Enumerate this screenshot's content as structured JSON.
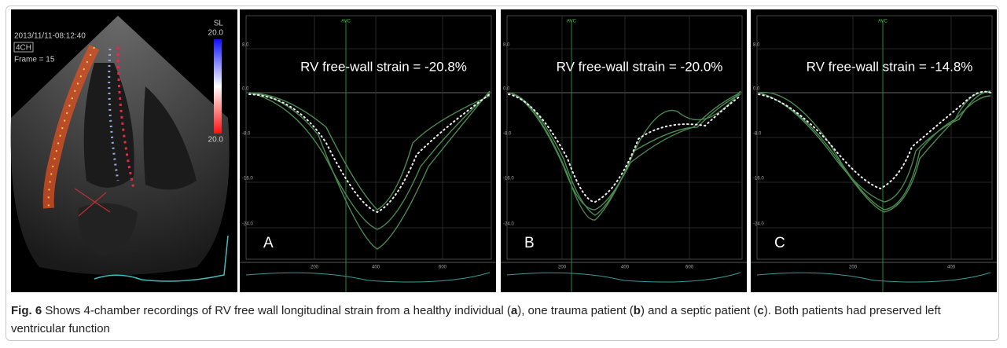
{
  "figure": {
    "echo": {
      "timestamp": "2013/11/11-08:12:40",
      "view": "4CH",
      "frame": "Frame = 15",
      "scale_label": "SL",
      "scale_max": "20.0",
      "scale_min": "20.0"
    },
    "panels": [
      {
        "letter": "A",
        "strain": "RV free-wall strain = -20.8%",
        "marker": "AVC",
        "yticks": [
          "8.0",
          "0.0",
          "-8.0",
          "-16.0",
          "-24.0"
        ],
        "xticks": [
          "200",
          "400",
          "600"
        ]
      },
      {
        "letter": "B",
        "strain": "RV free-wall strain = -20.0%",
        "marker": "AVC",
        "yticks": [
          "8.0",
          "0.0",
          "-8.0",
          "-16.0",
          "-24.0"
        ],
        "xticks": [
          "200",
          "400",
          "600"
        ]
      },
      {
        "letter": "C",
        "strain": "RV free-wall strain = -14.8%",
        "marker": "AVC",
        "yticks": [
          "8.0",
          "0.0",
          "-8.0",
          "-16.0",
          "-24.0"
        ],
        "xticks": [
          "200",
          "400"
        ]
      }
    ]
  },
  "caption": {
    "segments": [
      {
        "text": "Fig. 6",
        "bold": true
      },
      {
        "text": " Shows 4-chamber recordings of RV free wall longitudinal strain from a healthy individual (",
        "bold": false
      },
      {
        "text": "a",
        "bold": true
      },
      {
        "text": "), one trauma patient (",
        "bold": false
      },
      {
        "text": "b",
        "bold": true
      },
      {
        "text": ") and a septic patient (",
        "bold": false
      },
      {
        "text": "c",
        "bold": true
      },
      {
        "text": "). Both patients had preserved left ventricular function",
        "bold": false
      }
    ]
  }
}
